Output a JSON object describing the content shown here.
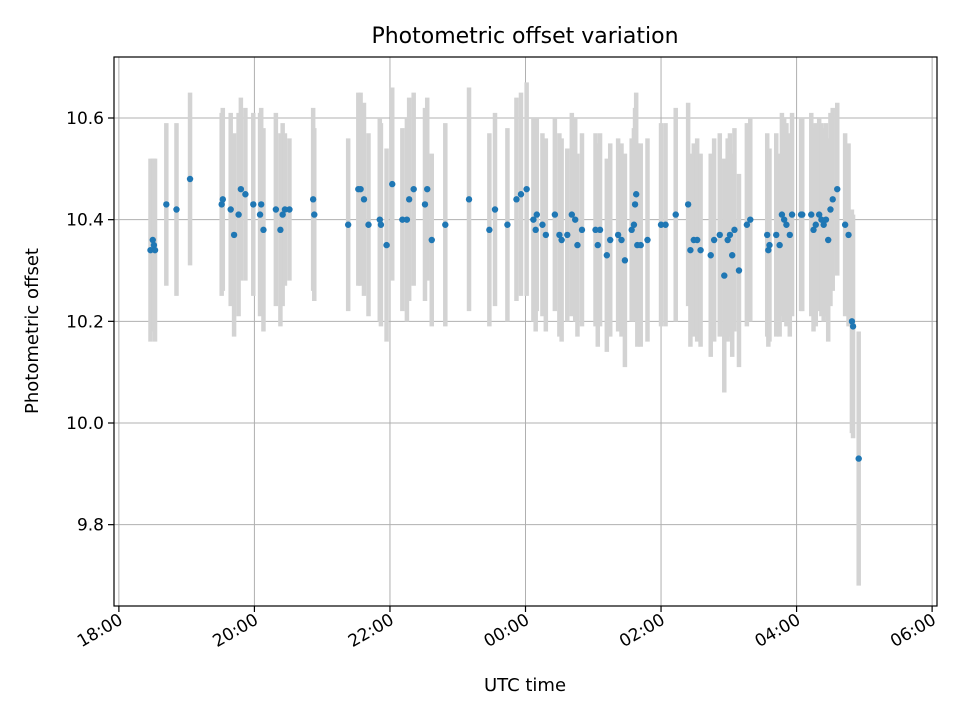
{
  "chart_data": {
    "type": "scatter",
    "title": "Photometric offset variation",
    "xlabel": "UTC time",
    "ylabel": "Photometric offset",
    "xlim": [
      "18:00",
      "06:00"
    ],
    "ylim": [
      9.64,
      10.72
    ],
    "grid": true,
    "x_ticks": [
      "18:00",
      "20:00",
      "22:00",
      "00:00",
      "02:00",
      "04:00",
      "06:00"
    ],
    "y_ticks": [
      9.8,
      10.0,
      10.2,
      10.4,
      10.6
    ],
    "colors": {
      "point": "#1f77b4",
      "errorbar": "#d3d3d3",
      "grid": "#b0b0b0"
    },
    "series": [
      {
        "points": [
          {
            "t": "18:28",
            "y": 10.34,
            "err": 0.18
          },
          {
            "t": "18:30",
            "y": 10.36,
            "err": 0.16
          },
          {
            "t": "18:31",
            "y": 10.35,
            "err": 0.17
          },
          {
            "t": "18:32",
            "y": 10.34,
            "err": 0.18
          },
          {
            "t": "18:42",
            "y": 10.43,
            "err": 0.16
          },
          {
            "t": "18:51",
            "y": 10.42,
            "err": 0.17
          },
          {
            "t": "19:03",
            "y": 10.48,
            "err": 0.17
          },
          {
            "t": "19:31",
            "y": 10.43,
            "err": 0.18
          },
          {
            "t": "19:32",
            "y": 10.44,
            "err": 0.18
          },
          {
            "t": "19:39",
            "y": 10.42,
            "err": 0.19
          },
          {
            "t": "19:42",
            "y": 10.37,
            "err": 0.2
          },
          {
            "t": "19:46",
            "y": 10.41,
            "err": 0.2
          },
          {
            "t": "19:48",
            "y": 10.46,
            "err": 0.18
          },
          {
            "t": "19:52",
            "y": 10.45,
            "err": 0.17
          },
          {
            "t": "19:59",
            "y": 10.43,
            "err": 0.18
          },
          {
            "t": "20:05",
            "y": 10.41,
            "err": 0.2
          },
          {
            "t": "20:06",
            "y": 10.43,
            "err": 0.19
          },
          {
            "t": "20:08",
            "y": 10.38,
            "err": 0.2
          },
          {
            "t": "20:19",
            "y": 10.42,
            "err": 0.19
          },
          {
            "t": "20:23",
            "y": 10.38,
            "err": 0.19
          },
          {
            "t": "20:25",
            "y": 10.41,
            "err": 0.18
          },
          {
            "t": "20:27",
            "y": 10.42,
            "err": 0.15
          },
          {
            "t": "20:31",
            "y": 10.42,
            "err": 0.14
          },
          {
            "t": "20:52",
            "y": 10.44,
            "err": 0.18
          },
          {
            "t": "20:53",
            "y": 10.41,
            "err": 0.17
          },
          {
            "t": "21:23",
            "y": 10.39,
            "err": 0.17
          },
          {
            "t": "21:32",
            "y": 10.46,
            "err": 0.19
          },
          {
            "t": "21:34",
            "y": 10.46,
            "err": 0.19
          },
          {
            "t": "21:37",
            "y": 10.44,
            "err": 0.19
          },
          {
            "t": "21:41",
            "y": 10.39,
            "err": 0.18
          },
          {
            "t": "21:51",
            "y": 10.4,
            "err": 0.2
          },
          {
            "t": "21:52",
            "y": 10.39,
            "err": 0.2
          },
          {
            "t": "21:57",
            "y": 10.35,
            "err": 0.19
          },
          {
            "t": "22:02",
            "y": 10.47,
            "err": 0.19
          },
          {
            "t": "22:11",
            "y": 10.4,
            "err": 0.18
          },
          {
            "t": "22:15",
            "y": 10.4,
            "err": 0.2
          },
          {
            "t": "22:17",
            "y": 10.44,
            "err": 0.2
          },
          {
            "t": "22:21",
            "y": 10.46,
            "err": 0.19
          },
          {
            "t": "22:31",
            "y": 10.43,
            "err": 0.19
          },
          {
            "t": "22:33",
            "y": 10.46,
            "err": 0.18
          },
          {
            "t": "22:37",
            "y": 10.36,
            "err": 0.17
          },
          {
            "t": "22:49",
            "y": 10.39,
            "err": 0.2
          },
          {
            "t": "23:10",
            "y": 10.44,
            "err": 0.22
          },
          {
            "t": "23:28",
            "y": 10.38,
            "err": 0.19
          },
          {
            "t": "23:33",
            "y": 10.42,
            "err": 0.19
          },
          {
            "t": "23:44",
            "y": 10.39,
            "err": 0.19
          },
          {
            "t": "23:52",
            "y": 10.44,
            "err": 0.2
          },
          {
            "t": "23:56",
            "y": 10.45,
            "err": 0.2
          },
          {
            "t": "00:01",
            "y": 10.46,
            "err": 0.21
          },
          {
            "t": "00:07",
            "y": 10.4,
            "err": 0.2
          },
          {
            "t": "00:09",
            "y": 10.38,
            "err": 0.2
          },
          {
            "t": "00:10",
            "y": 10.41,
            "err": 0.19
          },
          {
            "t": "00:15",
            "y": 10.39,
            "err": 0.18
          },
          {
            "t": "00:18",
            "y": 10.37,
            "err": 0.19
          },
          {
            "t": "00:26",
            "y": 10.41,
            "err": 0.19
          },
          {
            "t": "00:30",
            "y": 10.37,
            "err": 0.2
          },
          {
            "t": "00:32",
            "y": 10.36,
            "err": 0.2
          },
          {
            "t": "00:37",
            "y": 10.37,
            "err": 0.17
          },
          {
            "t": "00:41",
            "y": 10.41,
            "err": 0.2
          },
          {
            "t": "00:44",
            "y": 10.4,
            "err": 0.2
          },
          {
            "t": "00:46",
            "y": 10.35,
            "err": 0.18
          },
          {
            "t": "00:50",
            "y": 10.38,
            "err": 0.19
          },
          {
            "t": "01:02",
            "y": 10.38,
            "err": 0.19
          },
          {
            "t": "01:04",
            "y": 10.35,
            "err": 0.2
          },
          {
            "t": "01:06",
            "y": 10.38,
            "err": 0.19
          },
          {
            "t": "01:12",
            "y": 10.33,
            "err": 0.19
          },
          {
            "t": "01:15",
            "y": 10.36,
            "err": 0.19
          },
          {
            "t": "01:22",
            "y": 10.37,
            "err": 0.19
          },
          {
            "t": "01:25",
            "y": 10.36,
            "err": 0.19
          },
          {
            "t": "01:28",
            "y": 10.32,
            "err": 0.21
          },
          {
            "t": "01:34",
            "y": 10.38,
            "err": 0.18
          },
          {
            "t": "01:36",
            "y": 10.39,
            "err": 0.19
          },
          {
            "t": "01:37",
            "y": 10.43,
            "err": 0.19
          },
          {
            "t": "01:38",
            "y": 10.45,
            "err": 0.2
          },
          {
            "t": "01:39",
            "y": 10.35,
            "err": 0.2
          },
          {
            "t": "01:42",
            "y": 10.35,
            "err": 0.2
          },
          {
            "t": "01:48",
            "y": 10.36,
            "err": 0.2
          },
          {
            "t": "02:00",
            "y": 10.39,
            "err": 0.2
          },
          {
            "t": "02:04",
            "y": 10.39,
            "err": 0.2
          },
          {
            "t": "02:13",
            "y": 10.41,
            "err": 0.21
          },
          {
            "t": "02:24",
            "y": 10.43,
            "err": 0.2
          },
          {
            "t": "02:26",
            "y": 10.34,
            "err": 0.19
          },
          {
            "t": "02:29",
            "y": 10.36,
            "err": 0.19
          },
          {
            "t": "02:32",
            "y": 10.36,
            "err": 0.2
          },
          {
            "t": "02:35",
            "y": 10.34,
            "err": 0.19
          },
          {
            "t": "02:44",
            "y": 10.33,
            "err": 0.2
          },
          {
            "t": "02:47",
            "y": 10.36,
            "err": 0.2
          },
          {
            "t": "02:52",
            "y": 10.37,
            "err": 0.2
          },
          {
            "t": "02:56",
            "y": 10.29,
            "err": 0.23
          },
          {
            "t": "02:59",
            "y": 10.36,
            "err": 0.2
          },
          {
            "t": "03:01",
            "y": 10.37,
            "err": 0.2
          },
          {
            "t": "03:03",
            "y": 10.33,
            "err": 0.2
          },
          {
            "t": "03:05",
            "y": 10.38,
            "err": 0.2
          },
          {
            "t": "03:09",
            "y": 10.3,
            "err": 0.19
          },
          {
            "t": "03:16",
            "y": 10.39,
            "err": 0.2
          },
          {
            "t": "03:19",
            "y": 10.4,
            "err": 0.2
          },
          {
            "t": "03:34",
            "y": 10.37,
            "err": 0.2
          },
          {
            "t": "03:35",
            "y": 10.34,
            "err": 0.19
          },
          {
            "t": "03:36",
            "y": 10.35,
            "err": 0.19
          },
          {
            "t": "03:42",
            "y": 10.37,
            "err": 0.2
          },
          {
            "t": "03:45",
            "y": 10.35,
            "err": 0.18
          },
          {
            "t": "03:47",
            "y": 10.41,
            "err": 0.2
          },
          {
            "t": "03:49",
            "y": 10.4,
            "err": 0.2
          },
          {
            "t": "03:51",
            "y": 10.39,
            "err": 0.2
          },
          {
            "t": "03:54",
            "y": 10.37,
            "err": 0.2
          },
          {
            "t": "03:56",
            "y": 10.41,
            "err": 0.2
          },
          {
            "t": "04:04",
            "y": 10.41,
            "err": 0.19
          },
          {
            "t": "04:05",
            "y": 10.41,
            "err": 0.19
          },
          {
            "t": "04:13",
            "y": 10.41,
            "err": 0.2
          },
          {
            "t": "04:15",
            "y": 10.38,
            "err": 0.2
          },
          {
            "t": "04:17",
            "y": 10.39,
            "err": 0.2
          },
          {
            "t": "04:20",
            "y": 10.41,
            "err": 0.19
          },
          {
            "t": "04:22",
            "y": 10.4,
            "err": 0.19
          },
          {
            "t": "04:24",
            "y": 10.39,
            "err": 0.19
          },
          {
            "t": "04:26",
            "y": 10.4,
            "err": 0.19
          },
          {
            "t": "04:28",
            "y": 10.36,
            "err": 0.2
          },
          {
            "t": "04:30",
            "y": 10.42,
            "err": 0.19
          },
          {
            "t": "04:32",
            "y": 10.44,
            "err": 0.18
          },
          {
            "t": "04:36",
            "y": 10.46,
            "err": 0.17
          },
          {
            "t": "04:43",
            "y": 10.39,
            "err": 0.18
          },
          {
            "t": "04:46",
            "y": 10.37,
            "err": 0.18
          },
          {
            "t": "04:49",
            "y": 10.2,
            "err": 0.22
          },
          {
            "t": "04:50",
            "y": 10.19,
            "err": 0.22
          },
          {
            "t": "04:55",
            "y": 9.93,
            "err": 0.25
          }
        ]
      }
    ]
  }
}
